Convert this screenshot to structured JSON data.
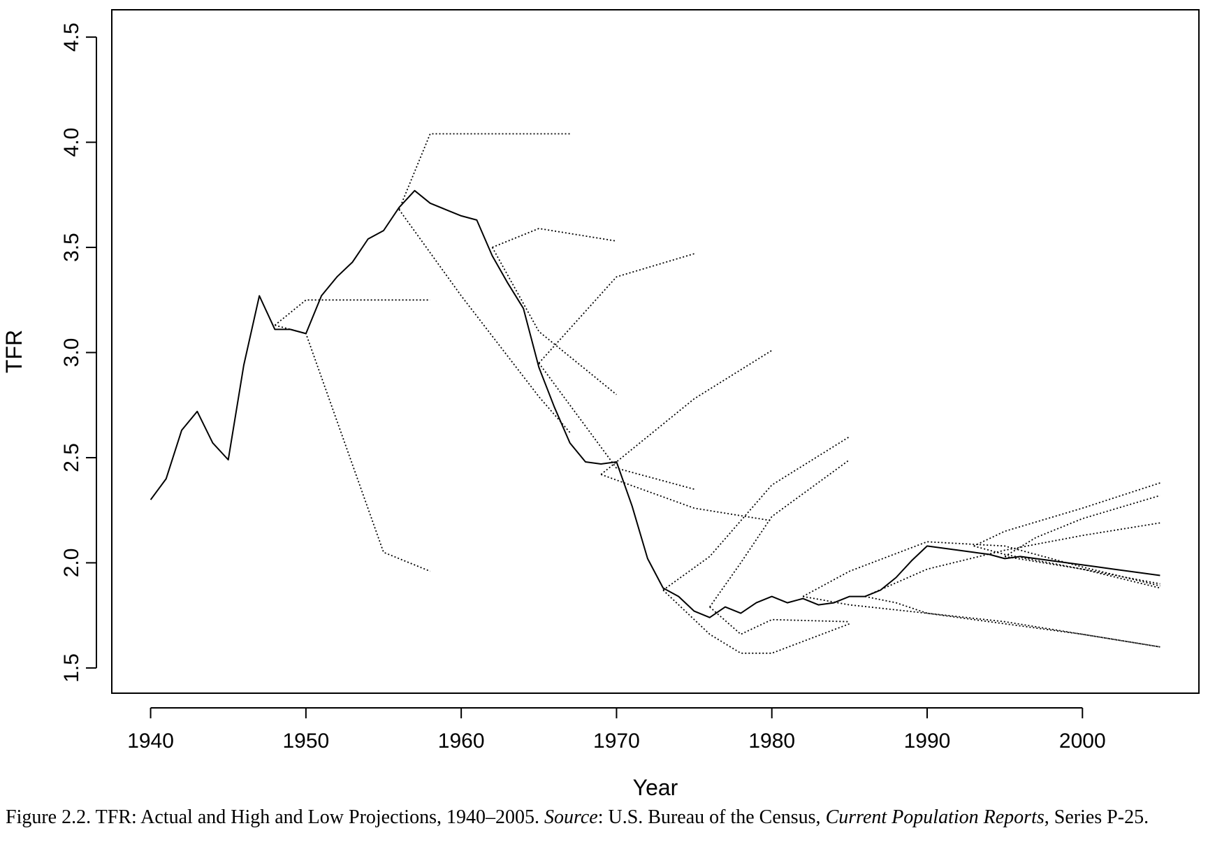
{
  "chart_data": {
    "type": "line",
    "xlabel": "Year",
    "ylabel": "TFR",
    "xlim": [
      1937.5,
      2007.5
    ],
    "ylim": [
      1.38,
      4.63
    ],
    "xticks": [
      1940,
      1950,
      1960,
      1970,
      1980,
      1990,
      2000
    ],
    "yticks": [
      1.5,
      2.0,
      2.5,
      3.0,
      3.5,
      4.0,
      4.5
    ],
    "grid": false,
    "legend": "none",
    "series": [
      {
        "style": "solid",
        "x": [
          1940,
          1941,
          1942,
          1943,
          1944,
          1945,
          1946,
          1947,
          1948,
          1949,
          1950,
          1951,
          1952,
          1953,
          1954,
          1955,
          1956,
          1957,
          1958,
          1959,
          1960,
          1961,
          1962,
          1963,
          1964,
          1965,
          1966,
          1967,
          1968,
          1969,
          1970,
          1971,
          1972,
          1973,
          1974,
          1975,
          1976,
          1977,
          1978,
          1979,
          1980,
          1981,
          1982,
          1983,
          1984,
          1985,
          1986,
          1987,
          1988,
          1989,
          1990,
          1991,
          1992,
          1993,
          1994,
          1995,
          1996,
          1997,
          1998,
          1999,
          2000,
          2001,
          2002,
          2003,
          2004,
          2005
        ],
        "y": [
          2.3,
          2.4,
          2.63,
          2.72,
          2.57,
          2.49,
          2.94,
          3.27,
          3.11,
          3.11,
          3.09,
          3.27,
          3.36,
          3.43,
          3.54,
          3.58,
          3.69,
          3.77,
          3.71,
          3.68,
          3.65,
          3.63,
          3.46,
          3.33,
          3.21,
          2.93,
          2.74,
          2.57,
          2.48,
          2.47,
          2.48,
          2.27,
          2.02,
          1.88,
          1.84,
          1.77,
          1.74,
          1.79,
          1.76,
          1.81,
          1.84,
          1.81,
          1.83,
          1.8,
          1.81,
          1.84,
          1.84,
          1.87,
          1.93,
          2.01,
          2.08,
          2.07,
          2.06,
          2.05,
          2.04,
          2.02,
          2.03,
          2.02,
          2.01,
          2.0,
          1.99,
          1.98,
          1.97,
          1.96,
          1.95,
          1.94
        ]
      },
      {
        "style": "dotted",
        "x": [
          1948,
          1950,
          1955,
          1958
        ],
        "y": [
          3.13,
          3.25,
          3.25,
          3.25
        ]
      },
      {
        "style": "dotted",
        "x": [
          1948,
          1950,
          1955,
          1958
        ],
        "y": [
          3.13,
          3.09,
          2.05,
          1.96
        ]
      },
      {
        "style": "dotted",
        "x": [
          1956,
          1958,
          1960,
          1965,
          1967
        ],
        "y": [
          3.68,
          4.04,
          4.04,
          4.04,
          4.04
        ]
      },
      {
        "style": "dotted",
        "x": [
          1956,
          1960,
          1965,
          1967
        ],
        "y": [
          3.68,
          3.27,
          2.79,
          2.62
        ]
      },
      {
        "style": "dotted",
        "x": [
          1962,
          1965,
          1970
        ],
        "y": [
          3.5,
          3.59,
          3.53
        ]
      },
      {
        "style": "dotted",
        "x": [
          1962,
          1965,
          1970
        ],
        "y": [
          3.5,
          3.1,
          2.8
        ]
      },
      {
        "style": "dotted",
        "x": [
          1965,
          1970,
          1975
        ],
        "y": [
          2.95,
          3.36,
          3.47
        ]
      },
      {
        "style": "dotted",
        "x": [
          1965,
          1970,
          1975
        ],
        "y": [
          2.95,
          2.45,
          2.35
        ]
      },
      {
        "style": "dotted",
        "x": [
          1969,
          1975,
          1980
        ],
        "y": [
          2.42,
          2.78,
          3.01
        ]
      },
      {
        "style": "dotted",
        "x": [
          1969,
          1975,
          1980
        ],
        "y": [
          2.42,
          2.26,
          2.2
        ]
      },
      {
        "style": "dotted",
        "x": [
          1973,
          1976,
          1978,
          1980,
          1985
        ],
        "y": [
          1.87,
          2.03,
          2.2,
          2.37,
          2.6
        ]
      },
      {
        "style": "dotted",
        "x": [
          1973,
          1976,
          1978,
          1980,
          1985
        ],
        "y": [
          1.87,
          1.66,
          1.57,
          1.57,
          1.71
        ]
      },
      {
        "style": "dotted",
        "x": [
          1976,
          1978,
          1980,
          1985
        ],
        "y": [
          1.79,
          2.0,
          2.22,
          2.49
        ]
      },
      {
        "style": "dotted",
        "x": [
          1976,
          1978,
          1980,
          1985
        ],
        "y": [
          1.79,
          1.66,
          1.73,
          1.72
        ]
      },
      {
        "style": "dotted",
        "x": [
          1982,
          1985,
          1990,
          1995,
          2000,
          2005
        ],
        "y": [
          1.84,
          1.96,
          2.1,
          2.08,
          1.98,
          1.89
        ]
      },
      {
        "style": "dotted",
        "x": [
          1982,
          1985,
          1990,
          1995,
          2000,
          2005
        ],
        "y": [
          1.84,
          1.8,
          1.76,
          1.72,
          1.66,
          1.6
        ]
      },
      {
        "style": "dotted",
        "x": [
          1986,
          1990,
          1995,
          2000,
          2005
        ],
        "y": [
          1.84,
          1.97,
          2.06,
          2.13,
          2.19
        ]
      },
      {
        "style": "dotted",
        "x": [
          1986,
          1988,
          1990,
          1993,
          1995,
          2000,
          2005
        ],
        "y": [
          1.84,
          1.81,
          1.76,
          1.73,
          1.71,
          1.66,
          1.6
        ]
      },
      {
        "style": "dotted",
        "x": [
          1993,
          1995,
          2000,
          2005
        ],
        "y": [
          2.08,
          2.15,
          2.26,
          2.38
        ]
      },
      {
        "style": "dotted",
        "x": [
          1993,
          1995,
          2000,
          2005
        ],
        "y": [
          2.08,
          2.04,
          1.97,
          1.88
        ]
      },
      {
        "style": "dotted",
        "x": [
          1995,
          1997,
          2000,
          2005
        ],
        "y": [
          2.03,
          2.12,
          2.21,
          2.32
        ]
      },
      {
        "style": "dotted",
        "x": [
          1995,
          2000,
          2005
        ],
        "y": [
          2.03,
          1.97,
          1.9
        ]
      }
    ]
  },
  "caption": {
    "figure_label": "Figure 2.2. TFR: Actual and High and Low Projections, 1940–2005.",
    "source_label": "Source",
    "source_sep": ": U.S. Bureau of the Census, ",
    "publication": "Current Population Reports",
    "series_text": ", Series P-25."
  }
}
